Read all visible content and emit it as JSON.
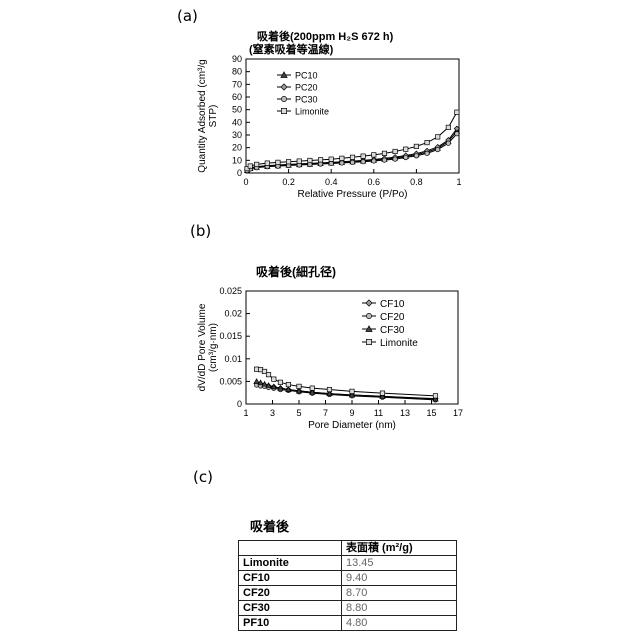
{
  "panel_labels": {
    "a": "(a)",
    "b": "(b)",
    "c": "(c)"
  },
  "chart_data": [
    {
      "type": "line",
      "title_line1": "吸着後(200ppm H₂S 672 h)",
      "title_line2": "(窒素吸着等温線)",
      "xlabel": "Relative Pressure (P/Po)",
      "ylabel_line1": "Quantity Adsorbed (cm³/g",
      "ylabel_line2": "STP)",
      "xlim": [
        0,
        1
      ],
      "ylim": [
        0,
        90
      ],
      "xticks": [
        "0",
        "0.2",
        "0.4",
        "0.6",
        "0.8",
        "1"
      ],
      "xtick_values": [
        0,
        0.2,
        0.4,
        0.6,
        0.8,
        1
      ],
      "yticks": [
        "0",
        "10",
        "20",
        "30",
        "40",
        "50",
        "60",
        "70",
        "80",
        "90"
      ],
      "ytick_values": [
        0,
        10,
        20,
        30,
        40,
        50,
        60,
        70,
        80,
        90
      ],
      "legend_position": "top-left",
      "series": [
        {
          "name": "PC10",
          "marker": "triangle",
          "x": [
            0.005,
            0.02,
            0.05,
            0.1,
            0.15,
            0.2,
            0.25,
            0.3,
            0.35,
            0.4,
            0.45,
            0.5,
            0.55,
            0.6,
            0.65,
            0.7,
            0.75,
            0.8,
            0.85,
            0.9,
            0.95,
            0.99
          ],
          "y": [
            2,
            3.5,
            4.5,
            5.2,
            5.7,
            6.2,
            6.6,
            7,
            7.4,
            7.8,
            8.3,
            8.8,
            9.4,
            10,
            10.8,
            11.8,
            13,
            14.5,
            16.5,
            19.5,
            25,
            33
          ]
        },
        {
          "name": "PC20",
          "marker": "diamond",
          "x": [
            0.005,
            0.02,
            0.05,
            0.1,
            0.15,
            0.2,
            0.25,
            0.3,
            0.35,
            0.4,
            0.45,
            0.5,
            0.55,
            0.6,
            0.65,
            0.7,
            0.75,
            0.8,
            0.85,
            0.9,
            0.95,
            0.99
          ],
          "y": [
            2.5,
            4,
            5,
            5.8,
            6.3,
            6.8,
            7.2,
            7.6,
            8,
            8.4,
            8.9,
            9.4,
            10,
            10.7,
            11.5,
            12.5,
            13.8,
            15.3,
            17.5,
            20.5,
            26,
            35
          ]
        },
        {
          "name": "PC30",
          "marker": "circle",
          "x": [
            0.005,
            0.02,
            0.05,
            0.1,
            0.15,
            0.2,
            0.25,
            0.3,
            0.35,
            0.4,
            0.45,
            0.5,
            0.55,
            0.6,
            0.65,
            0.7,
            0.75,
            0.8,
            0.85,
            0.9,
            0.95,
            0.99
          ],
          "y": [
            2,
            3.2,
            4.2,
            5,
            5.4,
            5.9,
            6.3,
            6.7,
            7.1,
            7.5,
            7.9,
            8.4,
            8.9,
            9.5,
            10.2,
            11,
            12.2,
            13.6,
            15.5,
            18.5,
            23.5,
            31
          ]
        },
        {
          "name": "Limonite",
          "marker": "square",
          "x": [
            0.005,
            0.02,
            0.05,
            0.1,
            0.15,
            0.2,
            0.25,
            0.3,
            0.35,
            0.4,
            0.45,
            0.5,
            0.55,
            0.6,
            0.65,
            0.7,
            0.75,
            0.8,
            0.85,
            0.9,
            0.95,
            0.99
          ],
          "y": [
            3.5,
            5.5,
            6.8,
            7.8,
            8.4,
            8.9,
            9.4,
            9.9,
            10.4,
            10.9,
            11.6,
            12.4,
            13.3,
            14.3,
            15.5,
            17,
            18.8,
            21,
            24,
            28.5,
            36,
            48
          ]
        }
      ]
    },
    {
      "type": "line",
      "title": "吸着後(細孔径)",
      "xlabel": "Pore Diameter (nm)",
      "ylabel_line1": "dV/dD Pore Volume",
      "ylabel_line2": "(cm³/g·nm)",
      "xlim": [
        1,
        17
      ],
      "ylim": [
        0,
        0.025
      ],
      "xticks": [
        "1",
        "3",
        "5",
        "7",
        "9",
        "11",
        "13",
        "15",
        "17"
      ],
      "xtick_values": [
        1,
        3,
        5,
        7,
        9,
        11,
        13,
        15,
        17
      ],
      "yticks": [
        "0",
        "0.005",
        "0.01",
        "0.015",
        "0.02",
        "0.025"
      ],
      "ytick_values": [
        0,
        0.005,
        0.01,
        0.015,
        0.02,
        0.025
      ],
      "legend_position": "top-right",
      "series": [
        {
          "name": "CF10",
          "marker": "diamond",
          "x": [
            1.8,
            2.1,
            2.4,
            2.7,
            3.1,
            3.6,
            4.2,
            5,
            6,
            7.3,
            9,
            11.3,
            15.3
          ],
          "y": [
            0.0046,
            0.0044,
            0.0042,
            0.004,
            0.0038,
            0.0035,
            0.0032,
            0.0029,
            0.0026,
            0.0023,
            0.002,
            0.0017,
            0.0012
          ]
        },
        {
          "name": "CF20",
          "marker": "circle",
          "x": [
            1.8,
            2.1,
            2.4,
            2.7,
            3.1,
            3.6,
            4.2,
            5,
            6,
            7.3,
            9,
            11.3,
            15.3
          ],
          "y": [
            0.0042,
            0.004,
            0.0039,
            0.0037,
            0.0035,
            0.0032,
            0.003,
            0.0027,
            0.0024,
            0.0021,
            0.0018,
            0.0015,
            0.0009
          ]
        },
        {
          "name": "CF30",
          "marker": "triangle",
          "x": [
            1.8,
            2.1,
            2.4,
            2.7,
            3.1,
            3.6,
            4.2,
            5,
            6,
            7.3,
            9,
            11.3,
            15.3
          ],
          "y": [
            0.005,
            0.0047,
            0.0044,
            0.0041,
            0.0038,
            0.0035,
            0.0032,
            0.0029,
            0.0026,
            0.0023,
            0.002,
            0.0017,
            0.0011
          ]
        },
        {
          "name": "Limonite",
          "marker": "square",
          "x": [
            1.8,
            2.1,
            2.4,
            2.7,
            3.1,
            3.6,
            4.2,
            5,
            6,
            7.3,
            9,
            11.3,
            15.3
          ],
          "y": [
            0.0077,
            0.0076,
            0.0072,
            0.0065,
            0.0055,
            0.0048,
            0.0043,
            0.0039,
            0.0035,
            0.0032,
            0.0028,
            0.0024,
            0.0018
          ]
        }
      ]
    },
    {
      "type": "table",
      "title": "吸着後",
      "columns": [
        "",
        "表面積 (m²/g)"
      ],
      "rows": [
        {
          "name": "Limonite",
          "value": "13.45"
        },
        {
          "name": "CF10",
          "value": "9.40"
        },
        {
          "name": "CF20",
          "value": "8.70"
        },
        {
          "name": "CF30",
          "value": "8.80"
        },
        {
          "name": "PF10",
          "value": "4.80"
        }
      ]
    }
  ]
}
